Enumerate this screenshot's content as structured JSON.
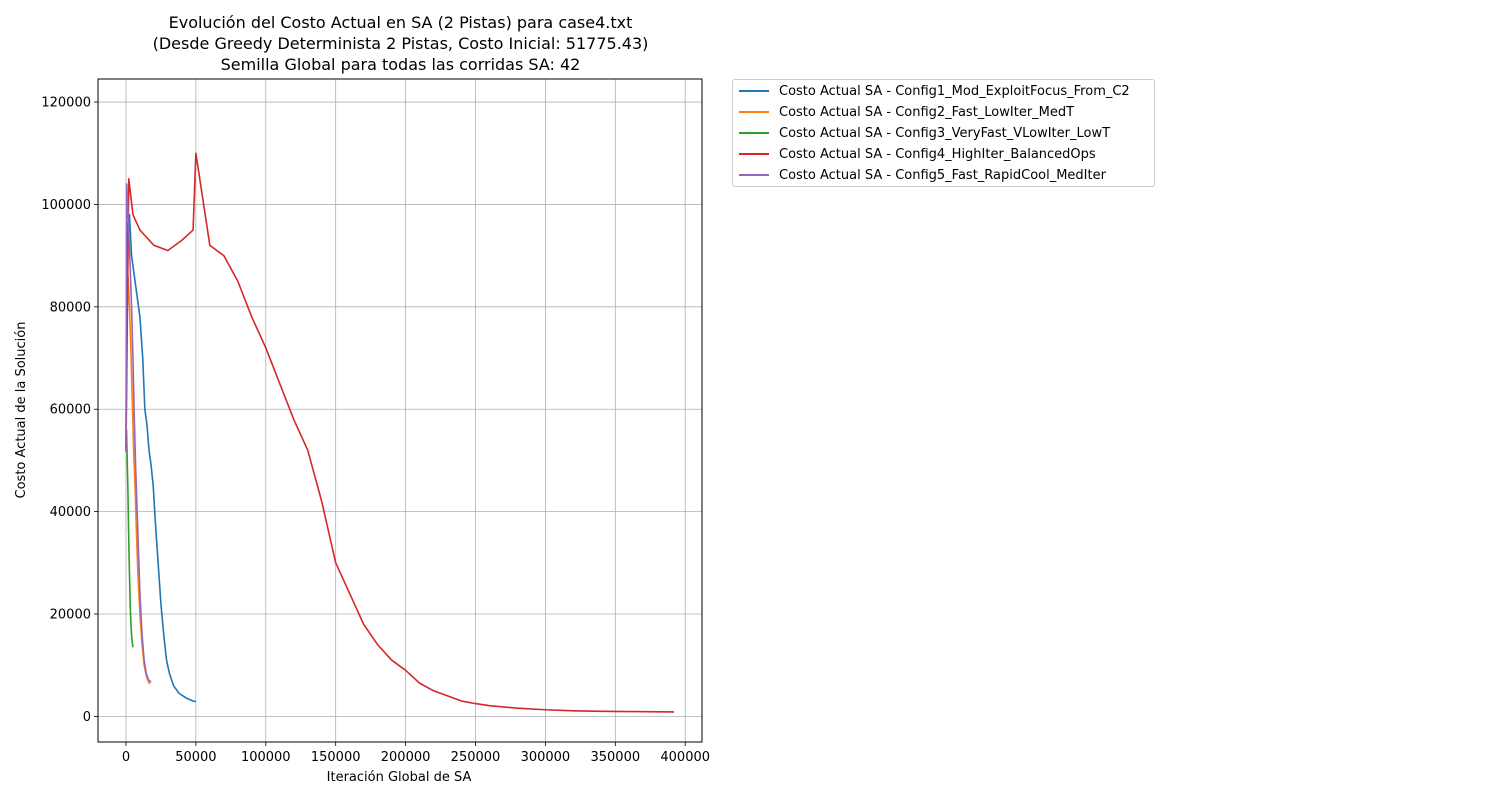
{
  "chart_data": {
    "type": "line",
    "title_lines": [
      "Evolución del Costo Actual en SA (2 Pistas) para case4.txt",
      "(Desde Greedy Determinista 2 Pistas, Costo Inicial: 51775.43)",
      "Semilla Global para todas las corridas SA: 42"
    ],
    "xlabel": "Iteración Global de SA",
    "ylabel": "Costo Actual de la Solución",
    "xlim": [
      -20000,
      412000
    ],
    "ylim": [
      -5000,
      124500
    ],
    "xticks": [
      0,
      50000,
      100000,
      150000,
      200000,
      250000,
      300000,
      350000,
      400000
    ],
    "yticks": [
      0,
      20000,
      40000,
      60000,
      80000,
      100000,
      120000
    ],
    "grid": true,
    "legend_position": "outside-top-right",
    "series": [
      {
        "name": "Costo Actual SA - Config1_Mod_ExploitFocus_From_C2",
        "color": "#1f77b4",
        "x": [
          0,
          1000,
          2500,
          4000,
          6000,
          8000,
          10000,
          12000,
          13500,
          15000,
          16500,
          18000,
          19500,
          21000,
          23000,
          25000,
          27000,
          29000,
          31000,
          34000,
          38000,
          43000,
          48000,
          50000
        ],
        "y": [
          51775,
          96000,
          98000,
          90000,
          86000,
          82000,
          78000,
          70000,
          60000,
          57000,
          52000,
          49000,
          45000,
          38000,
          30000,
          22000,
          16000,
          11000,
          8500,
          6000,
          4500,
          3600,
          3000,
          2900
        ]
      },
      {
        "name": "Costo Actual SA - Config2_Fast_LowIter_MedT",
        "color": "#ff7f0e",
        "x": [
          0,
          700,
          1500,
          2500,
          3500,
          4500,
          5500,
          6500,
          7500,
          8500,
          10000,
          11500,
          13000,
          14500,
          16000,
          17000
        ],
        "y": [
          51775,
          78000,
          86000,
          80000,
          72000,
          62000,
          52000,
          45000,
          36000,
          28000,
          20000,
          14000,
          10000,
          8000,
          6800,
          6300
        ]
      },
      {
        "name": "Costo Actual SA - Config3_VeryFast_VLowIter_LowT",
        "color": "#2ca02c",
        "x": [
          0,
          400,
          900,
          1400,
          1900,
          2500,
          3000,
          3500,
          4000,
          4500,
          5000
        ],
        "y": [
          51775,
          56000,
          50000,
          44000,
          36000,
          28000,
          22000,
          18500,
          16000,
          14500,
          13500
        ]
      },
      {
        "name": "Costo Actual SA - Config4_HighIter_BalancedOps",
        "color": "#d62728",
        "x": [
          0,
          2000,
          5000,
          10000,
          20000,
          30000,
          40000,
          48000,
          50000,
          60000,
          70000,
          80000,
          90000,
          100000,
          110000,
          120000,
          130000,
          140000,
          150000,
          160000,
          170000,
          180000,
          190000,
          200000,
          210000,
          220000,
          230000,
          240000,
          250000,
          260000,
          280000,
          300000,
          320000,
          340000,
          360000,
          380000,
          392000
        ],
        "y": [
          51775,
          105000,
          98000,
          95000,
          92000,
          91000,
          93000,
          95000,
          110000,
          92000,
          90000,
          85000,
          78000,
          72000,
          65000,
          58000,
          52000,
          42000,
          30000,
          24000,
          18000,
          14000,
          11000,
          9000,
          6500,
          5000,
          4000,
          3000,
          2500,
          2100,
          1600,
          1300,
          1100,
          1000,
          950,
          900,
          880
        ]
      },
      {
        "name": "Costo Actual SA - Config5_Fast_RapidCool_MedIter",
        "color": "#9467bd",
        "x": [
          0,
          500,
          1200,
          2000,
          3000,
          4000,
          5000,
          6000,
          7000,
          8000,
          9000,
          10000,
          11500,
          13000,
          14500,
          16000,
          18000
        ],
        "y": [
          51775,
          104000,
          100000,
          95000,
          88000,
          80000,
          70000,
          58000,
          48000,
          40000,
          32000,
          24000,
          16000,
          11000,
          8500,
          7200,
          6700
        ]
      }
    ]
  }
}
